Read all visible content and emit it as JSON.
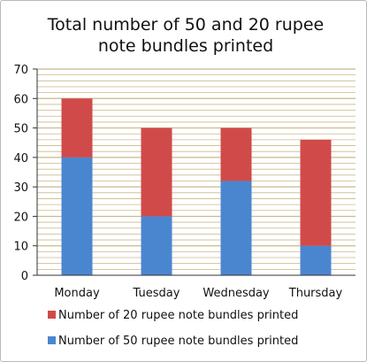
{
  "chart_data": {
    "type": "bar",
    "stacked": true,
    "title_lines": [
      "Total number of 50 and 20 rupee",
      "note bundles printed"
    ],
    "categories": [
      "Monday",
      "Tuesday",
      "Wednesday",
      "Thursday"
    ],
    "series": [
      {
        "name": "Number of 50 rupee note bundles printed",
        "values": [
          40,
          20,
          32,
          10
        ],
        "color": "#4a86d0"
      },
      {
        "name": "Number of 20 rupee note bundles printed",
        "values": [
          20,
          30,
          18,
          36
        ],
        "color": "#d04a4a"
      }
    ],
    "ylim": [
      0,
      70
    ],
    "yticks": [
      0,
      10,
      20,
      30,
      40,
      50,
      60,
      70
    ],
    "grid": true,
    "grid_color": "#c8b98a",
    "legend_position": "bottom",
    "legend_order": [
      1,
      0
    ]
  }
}
